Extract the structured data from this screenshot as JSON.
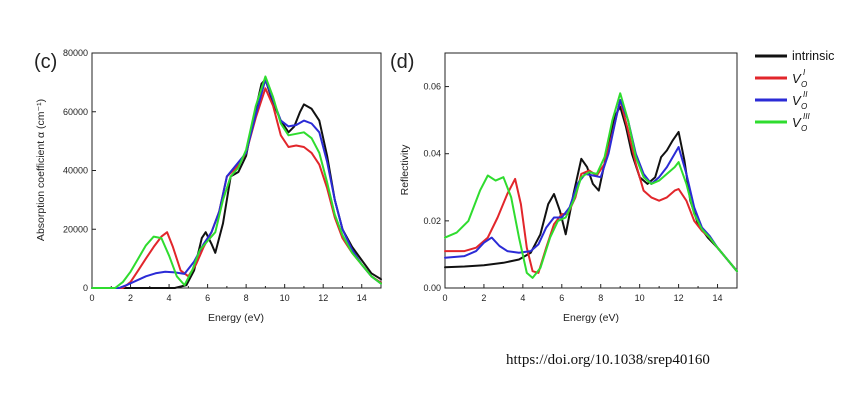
{
  "colors": {
    "intrinsic": "#111111",
    "vo1": "#e2262b",
    "vo2": "#2b2bd6",
    "vo3": "#2fdc2f"
  },
  "legend": [
    {
      "key": "intrinsic",
      "text": "intrinsic",
      "base": "",
      "sub": "",
      "sup": ""
    },
    {
      "key": "vo1",
      "text": "",
      "base": "V",
      "sub": "O",
      "sup": "I"
    },
    {
      "key": "vo2",
      "text": "",
      "base": "V",
      "sub": "O",
      "sup": "II"
    },
    {
      "key": "vo3",
      "text": "",
      "base": "V",
      "sub": "O",
      "sup": "III"
    }
  ],
  "doi": "https://doi.org/10.1038/srep40160",
  "chart_data": [
    {
      "type": "line",
      "panel_label": "(c)",
      "xlabel": "Energy (eV)",
      "ylabel": "Absorption coefficient α (cm⁻¹)",
      "xlim": [
        0,
        15
      ],
      "ylim": [
        0,
        80000
      ],
      "xticks": [
        "0",
        "2",
        "4",
        "6",
        "8",
        "10",
        "12",
        "14"
      ],
      "xtick_values": [
        0,
        2,
        4,
        6,
        8,
        10,
        12,
        14
      ],
      "yticks": [
        "0",
        "20000",
        "40000",
        "60000",
        "80000"
      ],
      "ytick_values": [
        0,
        20000,
        40000,
        60000,
        80000
      ],
      "series": [
        {
          "key": "intrinsic",
          "name": "intrinsic",
          "x": [
            0,
            4.3,
            4.9,
            5.3,
            5.7,
            5.9,
            6.2,
            6.4,
            6.8,
            7.2,
            7.6,
            8.0,
            8.4,
            8.8,
            9.0,
            9.4,
            9.8,
            10.2,
            10.5,
            10.8,
            11.0,
            11.4,
            11.8,
            12.2,
            12.6,
            13.0,
            13.5,
            14.0,
            14.5,
            15.0
          ],
          "y": [
            0,
            0,
            1000,
            6000,
            17000,
            19000,
            15000,
            12000,
            22000,
            38000,
            39500,
            45000,
            58000,
            69500,
            71000,
            63000,
            57000,
            53000,
            55000,
            60000,
            62500,
            61000,
            57000,
            45000,
            30000,
            20000,
            14000,
            9500,
            5000,
            3000
          ]
        },
        {
          "key": "vo1",
          "name": "V_O^I",
          "x": [
            0,
            1.6,
            2.0,
            2.4,
            2.8,
            3.2,
            3.6,
            3.9,
            4.2,
            4.6,
            5.0,
            5.4,
            5.8,
            6.2,
            6.6,
            7.0,
            7.5,
            8.0,
            8.5,
            9.0,
            9.4,
            9.8,
            10.2,
            10.6,
            11.0,
            11.4,
            11.8,
            12.2,
            12.6,
            13.0,
            13.5,
            14.0,
            14.5,
            15.0
          ],
          "y": [
            0,
            0,
            2000,
            6000,
            10000,
            14000,
            17500,
            19000,
            14000,
            6000,
            4000,
            8000,
            14000,
            19000,
            26000,
            38000,
            41000,
            46000,
            58000,
            68000,
            62000,
            52000,
            48000,
            48500,
            48000,
            46000,
            42000,
            34000,
            24000,
            17000,
            12000,
            8000,
            4000,
            1800
          ]
        },
        {
          "key": "vo2",
          "name": "V_O^II",
          "x": [
            0,
            1.4,
            1.8,
            2.3,
            2.8,
            3.3,
            3.8,
            4.3,
            4.8,
            5.3,
            5.8,
            6.2,
            6.6,
            7.0,
            7.5,
            8.0,
            8.5,
            9.0,
            9.4,
            9.8,
            10.2,
            10.6,
            11.0,
            11.4,
            11.8,
            12.2,
            12.6,
            13.0,
            13.5,
            14.0,
            14.5,
            15.0
          ],
          "y": [
            0,
            0,
            1000,
            2500,
            4000,
            5000,
            5500,
            5300,
            4800,
            9000,
            15000,
            19000,
            26000,
            38000,
            42000,
            46000,
            59000,
            71000,
            64000,
            57000,
            55000,
            55500,
            57000,
            56000,
            53000,
            43000,
            30000,
            20000,
            13000,
            8000,
            4000,
            1500
          ]
        },
        {
          "key": "vo3",
          "name": "V_O^III",
          "x": [
            0,
            1.2,
            1.6,
            2.0,
            2.4,
            2.8,
            3.2,
            3.6,
            4.0,
            4.4,
            4.8,
            5.2,
            5.6,
            6.0,
            6.4,
            6.8,
            7.2,
            7.6,
            8.0,
            8.5,
            9.0,
            9.4,
            9.8,
            10.2,
            10.6,
            11.0,
            11.4,
            11.8,
            12.2,
            12.6,
            13.0,
            13.5,
            14.0,
            14.5,
            15.0
          ],
          "y": [
            0,
            0,
            2000,
            5500,
            10000,
            14500,
            17500,
            17000,
            11000,
            4000,
            1000,
            6000,
            13000,
            16000,
            19000,
            30000,
            38000,
            41000,
            47000,
            62000,
            72000,
            65000,
            56000,
            52000,
            52500,
            53000,
            51000,
            46000,
            36000,
            25000,
            18000,
            12000,
            8000,
            4000,
            1500
          ]
        }
      ]
    },
    {
      "type": "line",
      "panel_label": "(d)",
      "xlabel": "Energy (eV)",
      "ylabel": "Reflectivity",
      "xlim": [
        0,
        15
      ],
      "ylim": [
        0,
        0.07
      ],
      "xticks": [
        "0",
        "2",
        "4",
        "6",
        "8",
        "10",
        "12",
        "14"
      ],
      "xtick_values": [
        0,
        2,
        4,
        6,
        8,
        10,
        12,
        14
      ],
      "yticks": [
        "0.00",
        "0.02",
        "0.04",
        "0.06"
      ],
      "ytick_values": [
        0,
        0.02,
        0.04,
        0.06
      ],
      "series": [
        {
          "key": "intrinsic",
          "name": "intrinsic",
          "x": [
            0,
            1.0,
            2.0,
            3.0,
            3.8,
            4.4,
            4.9,
            5.3,
            5.6,
            5.9,
            6.2,
            6.6,
            7.0,
            7.3,
            7.6,
            7.9,
            8.3,
            8.7,
            9.0,
            9.3,
            9.6,
            10.0,
            10.4,
            10.8,
            11.1,
            11.4,
            11.7,
            12.0,
            12.3,
            12.6,
            13.0,
            13.5,
            14.0,
            14.5,
            15.0
          ],
          "y": [
            0.0062,
            0.0064,
            0.0068,
            0.0075,
            0.0085,
            0.0105,
            0.016,
            0.025,
            0.028,
            0.023,
            0.016,
            0.028,
            0.0385,
            0.036,
            0.031,
            0.029,
            0.04,
            0.051,
            0.054,
            0.048,
            0.04,
            0.033,
            0.031,
            0.033,
            0.039,
            0.041,
            0.044,
            0.0465,
            0.038,
            0.026,
            0.019,
            0.015,
            0.012,
            0.0085,
            0.005
          ]
        },
        {
          "key": "vo1",
          "name": "V_O^I",
          "x": [
            0,
            1.0,
            1.6,
            2.2,
            2.7,
            3.2,
            3.6,
            3.9,
            4.2,
            4.5,
            4.8,
            5.2,
            5.6,
            6.0,
            6.3,
            6.7,
            7.0,
            7.4,
            7.8,
            8.2,
            8.6,
            9.0,
            9.4,
            9.8,
            10.2,
            10.6,
            11.0,
            11.4,
            11.8,
            12.0,
            12.4,
            12.8,
            13.2,
            13.6,
            14.0,
            14.5,
            15.0
          ],
          "y": [
            0.011,
            0.011,
            0.012,
            0.015,
            0.021,
            0.028,
            0.0325,
            0.025,
            0.012,
            0.005,
            0.0045,
            0.012,
            0.019,
            0.022,
            0.022,
            0.027,
            0.034,
            0.035,
            0.0335,
            0.037,
            0.046,
            0.056,
            0.047,
            0.037,
            0.029,
            0.027,
            0.026,
            0.027,
            0.029,
            0.0295,
            0.026,
            0.02,
            0.017,
            0.015,
            0.012,
            0.0085,
            0.005
          ]
        },
        {
          "key": "vo2",
          "name": "V_O^II",
          "x": [
            0,
            1.0,
            1.6,
            2.0,
            2.4,
            2.8,
            3.2,
            3.8,
            4.4,
            4.8,
            5.2,
            5.6,
            6.0,
            6.4,
            6.8,
            7.2,
            7.6,
            8.0,
            8.4,
            8.8,
            9.0,
            9.4,
            9.8,
            10.2,
            10.6,
            11.0,
            11.4,
            11.8,
            12.0,
            12.4,
            12.8,
            13.2,
            13.6,
            14.0,
            14.5,
            15.0
          ],
          "y": [
            0.009,
            0.0095,
            0.011,
            0.0135,
            0.015,
            0.0125,
            0.011,
            0.0105,
            0.011,
            0.013,
            0.018,
            0.021,
            0.021,
            0.024,
            0.031,
            0.034,
            0.0335,
            0.033,
            0.04,
            0.051,
            0.056,
            0.05,
            0.04,
            0.034,
            0.031,
            0.033,
            0.036,
            0.04,
            0.042,
            0.034,
            0.024,
            0.018,
            0.0155,
            0.012,
            0.0085,
            0.005
          ]
        },
        {
          "key": "vo3",
          "name": "V_O^III",
          "x": [
            0,
            0.6,
            1.2,
            1.8,
            2.2,
            2.6,
            3.0,
            3.4,
            3.8,
            4.2,
            4.5,
            4.9,
            5.4,
            5.8,
            6.2,
            6.6,
            7.0,
            7.4,
            7.8,
            8.2,
            8.6,
            9.0,
            9.4,
            9.8,
            10.2,
            10.6,
            11.0,
            11.4,
            11.8,
            12.0,
            12.4,
            12.8,
            13.2,
            13.6,
            14.0,
            14.5,
            15.0
          ],
          "y": [
            0.015,
            0.0165,
            0.02,
            0.029,
            0.0335,
            0.032,
            0.033,
            0.027,
            0.015,
            0.0045,
            0.003,
            0.006,
            0.015,
            0.02,
            0.021,
            0.026,
            0.033,
            0.0345,
            0.034,
            0.039,
            0.05,
            0.058,
            0.05,
            0.039,
            0.033,
            0.031,
            0.032,
            0.034,
            0.036,
            0.0375,
            0.031,
            0.022,
            0.0175,
            0.015,
            0.012,
            0.0085,
            0.005
          ]
        }
      ]
    }
  ]
}
